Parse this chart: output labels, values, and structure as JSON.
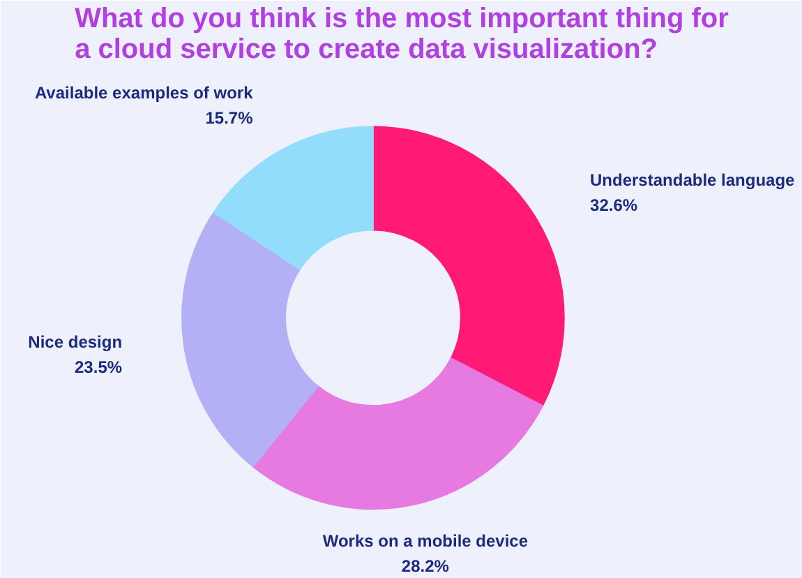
{
  "chart_data": {
    "type": "donut",
    "title": "What do you think is the most important thing for a cloud service to create data visualization?",
    "categories": [
      "Understandable language",
      "Works on a mobile device",
      "Nice design",
      "Available examples of work"
    ],
    "values": [
      32.6,
      28.2,
      23.5,
      15.7
    ],
    "value_labels": [
      "32.6%",
      "28.2%",
      "23.5%",
      "15.7%"
    ],
    "colors": [
      "#ff1a75",
      "#e67ae0",
      "#b3b0f5",
      "#92dcfc"
    ]
  }
}
